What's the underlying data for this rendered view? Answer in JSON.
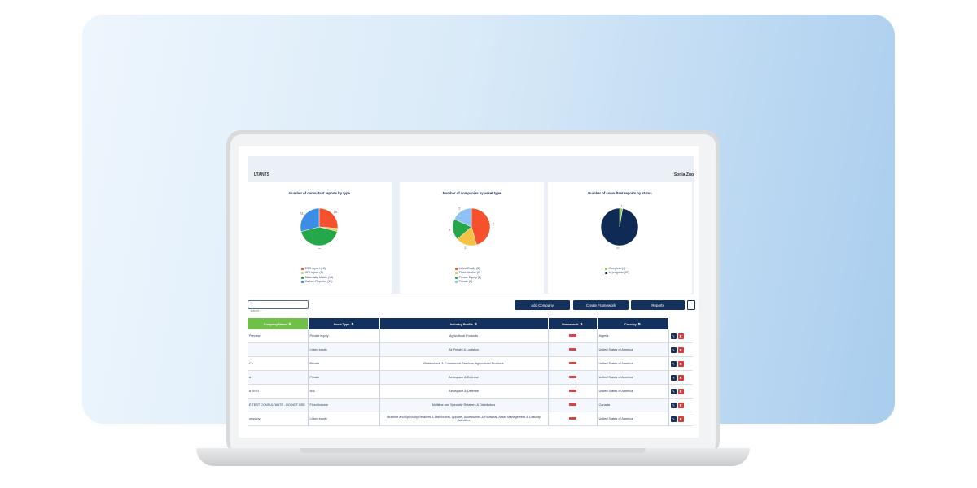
{
  "header": {
    "title": "LTANTS",
    "user": "Sonia Zug"
  },
  "charts": [
    {
      "title": "Number of consultant reports by type",
      "chart_data": {
        "type": "pie",
        "categories": [
          "ESG report",
          "GRI report",
          "Materiality Matrix",
          "Carbon Reporter"
        ],
        "values": [
          10,
          1,
          16,
          11
        ],
        "colors": [
          "#f4512c",
          "#f6c244",
          "#25a84a",
          "#3b8de6"
        ],
        "legend": [
          "ESG report (10)",
          "GRI report (1)",
          "Materiality Matrix (16)",
          "Carbon Reporter (11)"
        ],
        "data_labels": [
          "10",
          "",
          "16",
          "11"
        ]
      }
    },
    {
      "title": "Number of companies by asset type",
      "chart_data": {
        "type": "pie",
        "categories": [
          "Listed Equity",
          "Fixed income",
          "Private Equity",
          "Private"
        ],
        "values": [
          5,
          2,
          2,
          2
        ],
        "colors": [
          "#f4512c",
          "#f6c244",
          "#25a84a",
          "#8ec2f2"
        ],
        "legend": [
          "Listed Equity (5)",
          "Fixed income (2)",
          "Private Equity (2)",
          "Private (2)"
        ],
        "data_labels": [
          "5",
          "2",
          "2",
          "2"
        ]
      }
    },
    {
      "title": "Number of consultant reports by status",
      "chart_data": {
        "type": "pie",
        "categories": [
          "Complete",
          "In progress"
        ],
        "values": [
          1,
          37
        ],
        "colors": [
          "#8fcf5a",
          "#0f2b55"
        ],
        "legend": [
          "Complete (1)",
          "In progress (37)"
        ],
        "data_labels": [
          "1",
          "37"
        ]
      }
    }
  ],
  "toolbar": {
    "search_placeholder": "earch...",
    "add_company": "Add Company",
    "create_framework": "Create Framework",
    "reports": "Reports"
  },
  "table": {
    "columns": [
      "Company Name",
      "Asset Type",
      "Industry Profile",
      "Framework",
      "Country"
    ],
    "rows": [
      {
        "company": "Preview",
        "asset": "Private equity",
        "industry": "Agricultural Products",
        "country": "Algeria"
      },
      {
        "company": "",
        "asset": "Listed equity",
        "industry": "Air Freight & Logistics",
        "country": "United States of America"
      },
      {
        "company": "Co",
        "asset": "Private",
        "industry": "Professional & Commercial Services,  Agricultural Products",
        "country": "United States of America"
      },
      {
        "company": "a",
        "asset": "Private",
        "industry": "Aerospace & Defense",
        "country": "United States of America"
      },
      {
        "company": "a TEST",
        "asset": "N/A",
        "industry": "Aerospace & Defense",
        "country": "United States of America"
      },
      {
        "company": "E TEST CONSULTANTS - DO NOT USE",
        "asset": "Fixed income",
        "industry": "Multiline and Specialty Retailers & Distributors",
        "country": "Canada"
      },
      {
        "company": "ompany",
        "asset": "Listed equity",
        "industry": "Multiline and Specialty Retailers & Distributors,  Apparel, Accessories & Footwear,  Asset Management & Custody Activities",
        "country": "United States of America"
      }
    ]
  }
}
